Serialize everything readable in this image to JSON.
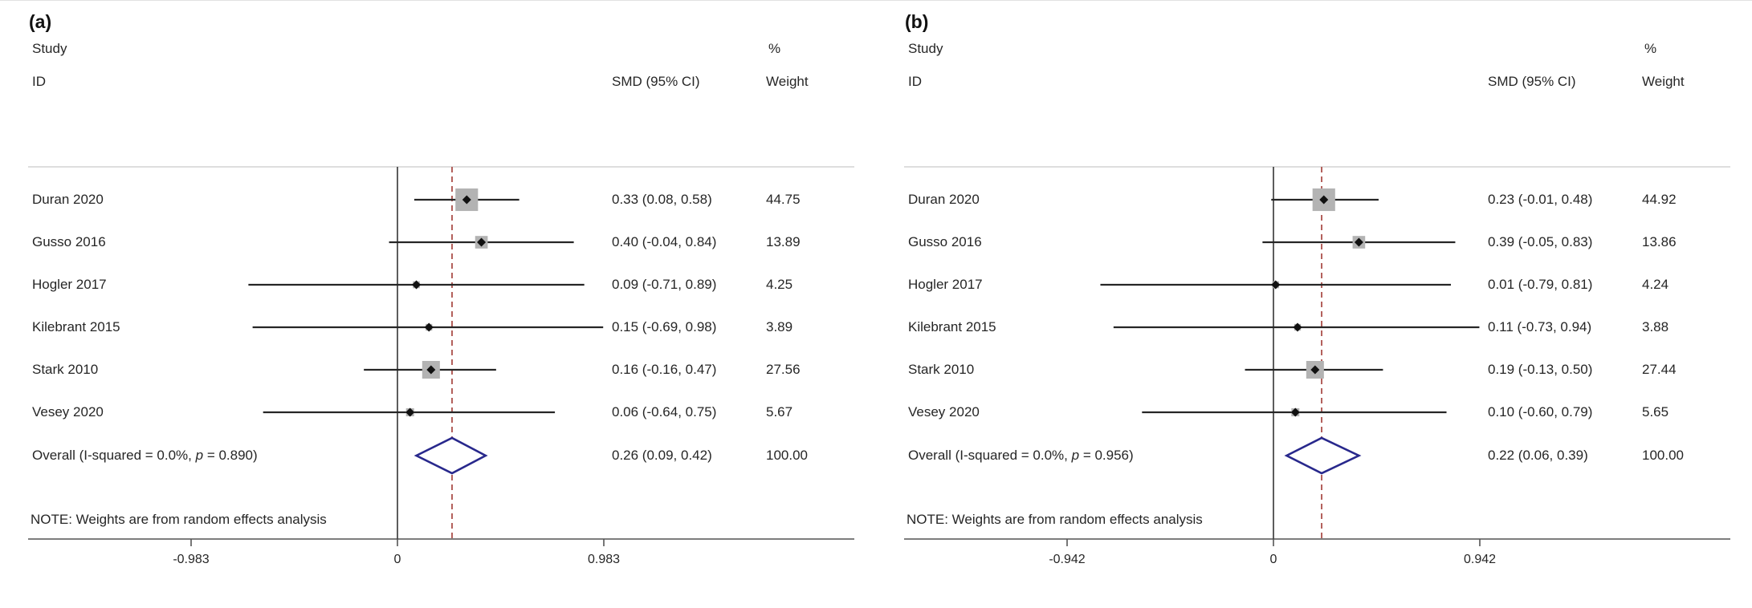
{
  "note": "NOTE: Weights are from random effects analysis",
  "header": {
    "study": "Study",
    "id": "ID",
    "percent": "%",
    "smd": "SMD (95% CI)",
    "weight": "Weight"
  },
  "colors": {
    "text": "#262626",
    "ci_line": "#262626",
    "weight_square": "#b3b3b3",
    "point_marker": "#111111",
    "zero_line": "#404040",
    "pooled_dashed_line": "#ab4f4a",
    "overall_diamond": "#28288c",
    "axis_line": "#7d7d7d",
    "top_rule": "#c9c9c9",
    "tick": "#555555"
  },
  "chart_data": [
    {
      "type": "forest",
      "panel_label": "(a)",
      "effect_measure": "SMD",
      "model": "random effects",
      "studies": [
        {
          "id": "Duran 2020",
          "smd": 0.33,
          "ci_low": 0.08,
          "ci_high": 0.58,
          "smd_label": "0.33 (0.08, 0.58)",
          "weight": 44.75,
          "weight_label": "44.75"
        },
        {
          "id": "Gusso 2016",
          "smd": 0.4,
          "ci_low": -0.04,
          "ci_high": 0.84,
          "smd_label": "0.40 (-0.04, 0.84)",
          "weight": 13.89,
          "weight_label": "13.89"
        },
        {
          "id": "Hogler 2017",
          "smd": 0.09,
          "ci_low": -0.71,
          "ci_high": 0.89,
          "smd_label": "0.09 (-0.71, 0.89)",
          "weight": 4.25,
          "weight_label": "4.25"
        },
        {
          "id": "Kilebrant 2015",
          "smd": 0.15,
          "ci_low": -0.69,
          "ci_high": 0.98,
          "smd_label": "0.15 (-0.69, 0.98)",
          "weight": 3.89,
          "weight_label": "3.89"
        },
        {
          "id": "Stark 2010",
          "smd": 0.16,
          "ci_low": -0.16,
          "ci_high": 0.47,
          "smd_label": "0.16 (-0.16, 0.47)",
          "weight": 27.56,
          "weight_label": "27.56"
        },
        {
          "id": "Vesey 2020",
          "smd": 0.06,
          "ci_low": -0.64,
          "ci_high": 0.75,
          "smd_label": "0.06 (-0.64, 0.75)",
          "weight": 5.67,
          "weight_label": "5.67"
        }
      ],
      "overall": {
        "label_parts": [
          "Overall  (I-squared = 0.0%, ",
          "p",
          " = 0.890)"
        ],
        "smd": 0.26,
        "ci_low": 0.09,
        "ci_high": 0.42,
        "smd_label": "0.26 (0.09, 0.42)",
        "weight_label": "100.00"
      },
      "pooled_line_value": 0.26,
      "x_ticks": [
        {
          "value": -0.983,
          "label": "-0.983"
        },
        {
          "value": 0,
          "label": "0"
        },
        {
          "value": 0.983,
          "label": "0.983"
        }
      ],
      "xlim": [
        -0.983,
        0.983
      ]
    },
    {
      "type": "forest",
      "panel_label": "(b)",
      "effect_measure": "SMD",
      "model": "random effects",
      "studies": [
        {
          "id": "Duran 2020",
          "smd": 0.23,
          "ci_low": -0.01,
          "ci_high": 0.48,
          "smd_label": "0.23 (-0.01, 0.48)",
          "weight": 44.92,
          "weight_label": "44.92"
        },
        {
          "id": "Gusso 2016",
          "smd": 0.39,
          "ci_low": -0.05,
          "ci_high": 0.83,
          "smd_label": "0.39 (-0.05, 0.83)",
          "weight": 13.86,
          "weight_label": "13.86"
        },
        {
          "id": "Hogler 2017",
          "smd": 0.01,
          "ci_low": -0.79,
          "ci_high": 0.81,
          "smd_label": "0.01 (-0.79, 0.81)",
          "weight": 4.24,
          "weight_label": "4.24"
        },
        {
          "id": "Kilebrant 2015",
          "smd": 0.11,
          "ci_low": -0.73,
          "ci_high": 0.94,
          "smd_label": "0.11 (-0.73, 0.94)",
          "weight": 3.88,
          "weight_label": "3.88"
        },
        {
          "id": "Stark 2010",
          "smd": 0.19,
          "ci_low": -0.13,
          "ci_high": 0.5,
          "smd_label": "0.19 (-0.13, 0.50)",
          "weight": 27.44,
          "weight_label": "27.44"
        },
        {
          "id": "Vesey 2020",
          "smd": 0.1,
          "ci_low": -0.6,
          "ci_high": 0.79,
          "smd_label": "0.10 (-0.60, 0.79)",
          "weight": 5.65,
          "weight_label": "5.65"
        }
      ],
      "overall": {
        "label_parts": [
          "Overall  (I-squared = 0.0%, ",
          "p",
          " = 0.956)"
        ],
        "smd": 0.22,
        "ci_low": 0.06,
        "ci_high": 0.39,
        "smd_label": "0.22 (0.06, 0.39)",
        "weight_label": "100.00"
      },
      "pooled_line_value": 0.22,
      "x_ticks": [
        {
          "value": -0.942,
          "label": "-0.942"
        },
        {
          "value": 0,
          "label": "0"
        },
        {
          "value": 0.942,
          "label": "0.942"
        }
      ],
      "xlim": [
        -0.942,
        0.942
      ]
    }
  ]
}
